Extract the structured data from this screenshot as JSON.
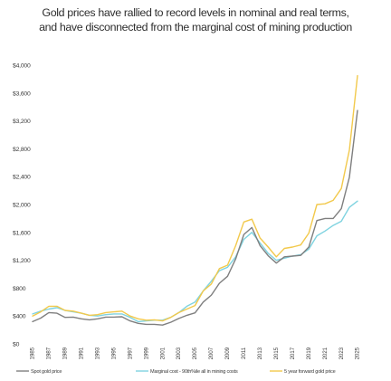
{
  "chart_data": {
    "type": "line",
    "title": "Gold prices have rallied to record levels in nominal and real terms, and have disconnected from the marginal cost of mining production",
    "xlabel": "",
    "ylabel": "",
    "xlim": [
      1985,
      2026
    ],
    "ylim": [
      0,
      4000
    ],
    "grid": false,
    "legend": "bottom",
    "y_ticks": [
      "$0",
      "$400",
      "$800",
      "$1,200",
      "$1,600",
      "$2,000",
      "$2,400",
      "$2,800",
      "$3,200",
      "$3,600",
      "$4,000"
    ],
    "y_tick_values": [
      0,
      400,
      800,
      1200,
      1600,
      2000,
      2400,
      2800,
      3200,
      3600,
      4000
    ],
    "x_ticks": [
      "1985",
      "1986",
      "1987",
      "1988",
      "1989",
      "1990",
      "1991",
      "1992",
      "1993",
      "1994",
      "1995",
      "1996",
      "1997",
      "1998",
      "1999",
      "2000",
      "2001",
      "2002",
      "2003",
      "2004",
      "2005",
      "2006",
      "2007",
      "2008",
      "2009",
      "2010",
      "2011",
      "2012",
      "2013",
      "2014",
      "2015",
      "2016",
      "2017",
      "2018",
      "2019",
      "2020",
      "2021",
      "2022",
      "2023",
      "2024",
      "2025"
    ],
    "x_tick_labels_shown": [
      "1985",
      "1987",
      "1989",
      "1991",
      "1993",
      "1995",
      "1997",
      "1999",
      "2001",
      "2003",
      "2005",
      "2007",
      "2009",
      "2011",
      "2013",
      "2015",
      "2017",
      "2019",
      "2021",
      "2023",
      "2025"
    ],
    "series": [
      {
        "name": "Spot gold price",
        "color": "#7f7f7f",
        "x": [
          1985,
          1986,
          1987,
          1988,
          1989,
          1990,
          1991,
          1992,
          1993,
          1994,
          1995,
          1996,
          1997,
          1998,
          1999,
          2000,
          2001,
          2002,
          2003,
          2004,
          2005,
          2006,
          2007,
          2008,
          2009,
          2010,
          2011,
          2012,
          2013,
          2014,
          2015,
          2016,
          2017,
          2018,
          2019,
          2020,
          2021,
          2022,
          2023,
          2024,
          2025
        ],
        "values": [
          320,
          370,
          450,
          440,
          380,
          385,
          360,
          345,
          360,
          385,
          385,
          390,
          330,
          295,
          280,
          280,
          270,
          310,
          365,
          410,
          445,
          600,
          700,
          870,
          970,
          1220,
          1570,
          1670,
          1410,
          1265,
          1160,
          1250,
          1260,
          1270,
          1390,
          1770,
          1800,
          1800,
          1940,
          2390,
          3350
        ]
      },
      {
        "name": "Marginal cost - 90th%ile all in mining costs",
        "color": "#7fd3e0",
        "x": [
          1985,
          1986,
          1987,
          1988,
          1989,
          1990,
          1991,
          1992,
          1993,
          1994,
          1995,
          1996,
          1997,
          1998,
          1999,
          2000,
          2001,
          2002,
          2003,
          2004,
          2005,
          2006,
          2007,
          2008,
          2009,
          2010,
          2011,
          2012,
          2013,
          2014,
          2015,
          2016,
          2017,
          2018,
          2019,
          2020,
          2021,
          2022,
          2023,
          2024,
          2025
        ],
        "values": [
          430,
          470,
          500,
          520,
          480,
          460,
          440,
          410,
          400,
          420,
          430,
          430,
          380,
          320,
          330,
          340,
          340,
          380,
          450,
          540,
          600,
          760,
          900,
          1050,
          1100,
          1250,
          1500,
          1600,
          1450,
          1300,
          1200,
          1230,
          1260,
          1280,
          1360,
          1550,
          1620,
          1700,
          1760,
          1960,
          2050
        ]
      },
      {
        "name": "5 year forward gold price",
        "color": "#f2c94c",
        "x": [
          1985,
          1986,
          1987,
          1988,
          1989,
          1990,
          1991,
          1992,
          1993,
          1994,
          1995,
          1996,
          1997,
          1998,
          1999,
          2000,
          2001,
          2002,
          2003,
          2004,
          2005,
          2006,
          2007,
          2008,
          2009,
          2010,
          2011,
          2012,
          2013,
          2014,
          2015,
          2016,
          2017,
          2018,
          2019,
          2020,
          2021,
          2022,
          2023,
          2024,
          2025
        ],
        "values": [
          400,
          460,
          540,
          540,
          480,
          470,
          440,
          410,
          420,
          450,
          460,
          470,
          400,
          360,
          340,
          345,
          330,
          380,
          450,
          500,
          550,
          760,
          860,
          1080,
          1130,
          1410,
          1750,
          1790,
          1520,
          1390,
          1250,
          1370,
          1390,
          1420,
          1590,
          2000,
          2010,
          2060,
          2230,
          2780,
          3850
        ]
      }
    ]
  }
}
